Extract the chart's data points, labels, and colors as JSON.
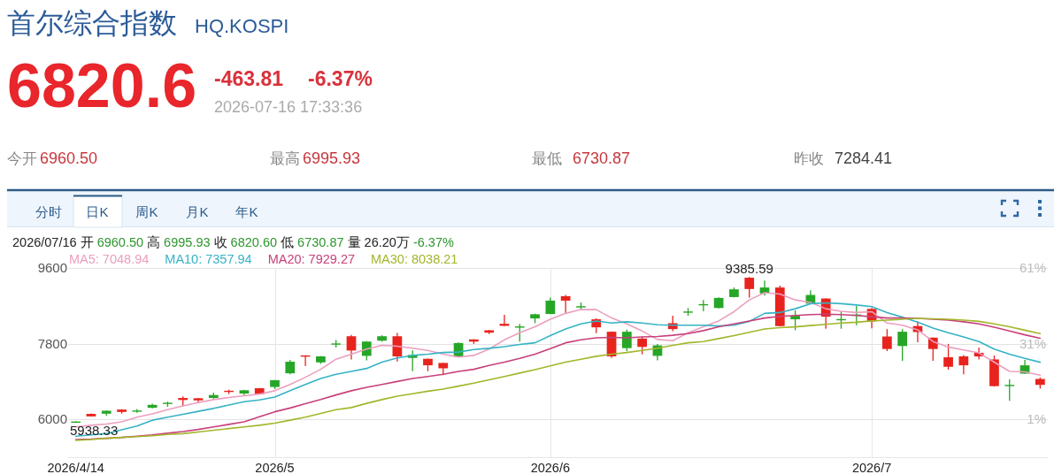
{
  "chart_data": {
    "type": "candlestick",
    "title": "首尔综合指数",
    "subtitle": "HQ.KOSPI",
    "annotations": [
      "6820.6",
      "-463.81",
      "-6.37%",
      "2026-07-16 17:33:36",
      "今开",
      "6960.50",
      "最高",
      "6995.93",
      "最低",
      "6730.87",
      "昨收",
      "7284.41",
      "分时",
      "日K",
      "周K",
      "月K",
      "年K",
      "2026/07/16 开 6960.50 高 6995.93 收 6820.60 低 6730.87 量 26.20万 -6.37%",
      {
        "text": "9385.59",
        "y": 9385.59
      },
      {
        "text": "5938.33",
        "y": 5938.33
      }
    ],
    "categories": [
      "2026/4/14",
      null,
      null,
      null,
      null,
      null,
      null,
      null,
      null,
      null,
      null,
      null,
      null,
      "2026/5",
      null,
      null,
      null,
      null,
      null,
      null,
      null,
      null,
      null,
      null,
      null,
      null,
      null,
      null,
      null,
      null,
      null,
      "2026/6",
      null,
      null,
      null,
      null,
      null,
      null,
      null,
      null,
      null,
      null,
      null,
      null,
      null,
      null,
      null,
      null,
      null,
      null,
      null,
      null,
      "2026/7",
      null,
      null,
      null,
      null,
      null,
      null,
      null,
      null,
      null,
      null,
      null
    ],
    "ohlc": [
      [
        5940,
        5955,
        5938.33,
        5948
      ],
      [
        6130,
        6140,
        6065,
        6070
      ],
      [
        6135,
        6210,
        6085,
        6205
      ],
      [
        6233,
        6240,
        6135,
        6176
      ],
      [
        6200,
        6248,
        6155,
        6210
      ],
      [
        6275,
        6370,
        6260,
        6345
      ],
      [
        6380,
        6420,
        6300,
        6395
      ],
      [
        6508,
        6545,
        6310,
        6460
      ],
      [
        6502,
        6510,
        6390,
        6451
      ],
      [
        6508,
        6635,
        6495,
        6578
      ],
      [
        6680,
        6705,
        6600,
        6665
      ],
      [
        6614,
        6705,
        6572,
        6692
      ],
      [
        6741,
        6745,
        6595,
        6600
      ],
      [
        6770,
        6935,
        6720,
        6932
      ],
      [
        7095,
        7413,
        7074,
        7370
      ],
      [
        7520,
        7525,
        7264,
        7510
      ],
      [
        7355,
        7505,
        7320,
        7497
      ],
      [
        7795,
        7885,
        7710,
        7805
      ],
      [
        7976,
        8006,
        7425,
        7637
      ],
      [
        7510,
        7860,
        7404,
        7849
      ],
      [
        7870,
        8000,
        7850,
        7976
      ],
      [
        7976,
        8054,
        7377,
        7497
      ],
      [
        7461,
        7637,
        7144,
        7531
      ],
      [
        7440,
        7445,
        7144,
        7286
      ],
      [
        7341,
        7345,
        7052,
        7214
      ],
      [
        7497,
        7830,
        7490,
        7815
      ],
      [
        7900,
        7905,
        7794,
        7849
      ],
      [
        8118,
        8125,
        8027,
        8061
      ],
      [
        8272,
        8485,
        8220,
        8224
      ],
      [
        8195,
        8272,
        7849,
        8210
      ],
      [
        8400,
        8510,
        8287,
        8499
      ],
      [
        8506,
        8895,
        8500,
        8823
      ],
      [
        8929,
        8958,
        8520,
        8823
      ],
      [
        8675,
        8781,
        8605,
        8690
      ],
      [
        8379,
        8400,
        8048,
        8188
      ],
      [
        8083,
        8090,
        7461,
        7497
      ],
      [
        7694,
        8132,
        7616,
        8083
      ],
      [
        7921,
        7970,
        7546,
        7723
      ],
      [
        7510,
        7794,
        7404,
        7758
      ],
      [
        8287,
        8463,
        8097,
        8146
      ],
      [
        8550,
        8648,
        8463,
        8565
      ],
      [
        8725,
        8838,
        8570,
        8740
      ],
      [
        8648,
        8900,
        8640,
        8887
      ],
      [
        8908,
        9135,
        8900,
        9091
      ],
      [
        9368,
        9385.59,
        8895,
        9099
      ],
      [
        8993,
        9298,
        8944,
        9135
      ],
      [
        9135,
        9177,
        8210,
        8218
      ],
      [
        8379,
        8590,
        8118,
        8463
      ],
      [
        8753,
        9071,
        8740,
        8958
      ],
      [
        8873,
        8880,
        8154,
        8442
      ],
      [
        8370,
        8569,
        8154,
        8385
      ],
      [
        8480,
        8697,
        8239,
        8492
      ],
      [
        8626,
        8650,
        8167,
        8330
      ],
      [
        7970,
        8146,
        7624,
        7673
      ],
      [
        7744,
        8146,
        7391,
        8083
      ],
      [
        8218,
        8330,
        7836,
        8076
      ],
      [
        7942,
        7950,
        7391,
        7673
      ],
      [
        7476,
        7794,
        7180,
        7250
      ],
      [
        7497,
        7530,
        7074,
        7285
      ],
      [
        7582,
        7709,
        7425,
        7497
      ],
      [
        7425,
        7518,
        6780,
        6790
      ],
      [
        6800,
        6953,
        6438,
        6820
      ],
      [
        7087,
        7413,
        7080,
        7284.41
      ],
      [
        6960.5,
        6995.93,
        6730.87,
        6820.6
      ]
    ],
    "colors": [
      "#26a626",
      "#e8231e",
      "#26a626",
      "#e8231e",
      "#26a626",
      "#26a626",
      "#26a626",
      "#e8231e",
      "#e8231e",
      "#26a626",
      "#e8231e",
      "#26a626",
      "#e8231e",
      "#26a626",
      "#26a626",
      "#e8231e",
      "#26a626",
      "#26a626",
      "#e8231e",
      "#26a626",
      "#26a626",
      "#e8231e",
      "#26a626",
      "#e8231e",
      "#e8231e",
      "#26a626",
      "#e8231e",
      "#e8231e",
      "#e8231e",
      "#26a626",
      "#26a626",
      "#26a626",
      "#e8231e",
      "#26a626",
      "#e8231e",
      "#e8231e",
      "#26a626",
      "#e8231e",
      "#26a626",
      "#e8231e",
      "#26a626",
      "#26a626",
      "#26a626",
      "#26a626",
      "#e8231e",
      "#26a626",
      "#e8231e",
      "#26a626",
      "#26a626",
      "#e8231e",
      "#26a626",
      "#26a626",
      "#e8231e",
      "#e8231e",
      "#26a626",
      "#e8231e",
      "#e8231e",
      "#e8231e",
      "#e8231e",
      "#e8231e",
      "#e8231e",
      "#26a626",
      "#26a626",
      "#e8231e"
    ],
    "series": [
      {
        "name": "MA5: 7048.94",
        "type": "line",
        "color": "#eb9fbf",
        "values": [
          5820,
          5860,
          5890,
          5940,
          6050,
          6130,
          6230,
          6320,
          6400,
          6470,
          6520,
          6560,
          6600,
          6680,
          6830,
          7000,
          7190,
          7430,
          7550,
          7670,
          7760,
          7740,
          7690,
          7640,
          7550,
          7480,
          7520,
          7670,
          7890,
          8060,
          8200,
          8380,
          8520,
          8610,
          8610,
          8410,
          8270,
          8100,
          7900,
          7870,
          8060,
          8200,
          8340,
          8560,
          8840,
          9010,
          8980,
          8840,
          8780,
          8630,
          8570,
          8540,
          8560,
          8290,
          8240,
          8130,
          7850,
          7720,
          7650,
          7580,
          7360,
          7140,
          7130,
          7048.94
        ]
      },
      {
        "name": "MA10: 7357.94",
        "type": "line",
        "color": "#35b3c5",
        "values": [
          5600,
          5630,
          5660,
          5750,
          5840,
          5980,
          6050,
          6120,
          6190,
          6260,
          6340,
          6420,
          6460,
          6530,
          6680,
          6830,
          6970,
          7070,
          7140,
          7210,
          7360,
          7460,
          7520,
          7550,
          7590,
          7600,
          7660,
          7690,
          7730,
          7780,
          7820,
          7990,
          8150,
          8270,
          8340,
          8290,
          8320,
          8290,
          8250,
          8240,
          8240,
          8240,
          8220,
          8240,
          8330,
          8520,
          8540,
          8630,
          8750,
          8770,
          8750,
          8720,
          8680,
          8540,
          8430,
          8310,
          8170,
          8060,
          7960,
          7850,
          7670,
          7550,
          7450,
          7357.94
        ]
      },
      {
        "name": "MA20: 7929.27",
        "type": "line",
        "color": "#c8407b",
        "values": [
          5520,
          5530,
          5550,
          5570,
          5600,
          5630,
          5670,
          5710,
          5760,
          5820,
          5880,
          5940,
          6060,
          6180,
          6270,
          6370,
          6470,
          6580,
          6680,
          6760,
          6830,
          6900,
          6970,
          7020,
          7070,
          7140,
          7190,
          7280,
          7360,
          7450,
          7550,
          7680,
          7820,
          7890,
          7940,
          7950,
          7940,
          7960,
          7970,
          8000,
          8040,
          8110,
          8200,
          8270,
          8340,
          8410,
          8450,
          8470,
          8490,
          8500,
          8490,
          8470,
          8440,
          8410,
          8410,
          8400,
          8380,
          8360,
          8320,
          8270,
          8190,
          8100,
          8010,
          7929.27
        ]
      },
      {
        "name": "MA30: 8038.21",
        "type": "line",
        "color": "#a3b62a",
        "values": [
          5500,
          5520,
          5550,
          5570,
          5590,
          5610,
          5640,
          5660,
          5700,
          5740,
          5780,
          5820,
          5860,
          5910,
          5980,
          6050,
          6140,
          6230,
          6280,
          6380,
          6470,
          6550,
          6610,
          6670,
          6720,
          6790,
          6860,
          6940,
          7020,
          7100,
          7180,
          7270,
          7360,
          7430,
          7500,
          7550,
          7590,
          7640,
          7690,
          7760,
          7820,
          7850,
          7920,
          7990,
          8070,
          8150,
          8180,
          8200,
          8230,
          8260,
          8290,
          8310,
          8340,
          8360,
          8380,
          8400,
          8390,
          8380,
          8360,
          8330,
          8270,
          8200,
          8120,
          8038.21
        ]
      }
    ],
    "ylim": [
      5100,
      9600
    ],
    "yticks": [
      9600,
      7800,
      6000
    ],
    "y2lim": [
      -14,
      61
    ],
    "y2ticks": [
      {
        "value": 61,
        "label": "61%"
      },
      {
        "value": 31,
        "label": "31%"
      },
      {
        "value": 1,
        "label": "1%"
      }
    ],
    "grid": true,
    "legend": "top left"
  }
}
